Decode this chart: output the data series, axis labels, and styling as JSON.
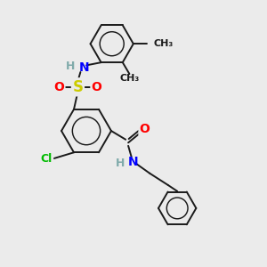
{
  "bg_color": "#ebebeb",
  "bond_color": "#1a1a1a",
  "atom_colors": {
    "N": "#0000ff",
    "O": "#ff0000",
    "S": "#cccc00",
    "Cl": "#00bb00",
    "H": "#7faaaa",
    "C": "#1a1a1a"
  },
  "font_size": 9,
  "linewidth": 1.4,
  "ring_r": 0.95
}
